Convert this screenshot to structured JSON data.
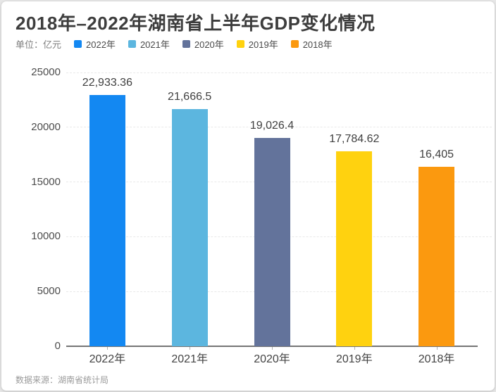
{
  "header": {
    "title": "2018年–2022年湖南省上半年GDP变化情况",
    "unit_label": "单位：亿元"
  },
  "legend": {
    "position": "top",
    "items": [
      {
        "label": "2022年",
        "color": "#1388F2"
      },
      {
        "label": "2021年",
        "color": "#5CB6DF"
      },
      {
        "label": "2020年",
        "color": "#63739B"
      },
      {
        "label": "2019年",
        "color": "#FFD20F"
      },
      {
        "label": "2018年",
        "color": "#FB990F"
      }
    ]
  },
  "chart_data": {
    "type": "bar",
    "title": "2018年–2022年湖南省上半年GDP变化情况",
    "categories": [
      "2022年",
      "2021年",
      "2020年",
      "2019年",
      "2018年"
    ],
    "values": [
      22933.36,
      21666.5,
      19026.4,
      17784.62,
      16405
    ],
    "value_labels": [
      "22,933.36",
      "21,666.5",
      "19,026.4",
      "17,784.62",
      "16,405"
    ],
    "colors": [
      "#1388F2",
      "#5CB6DF",
      "#63739B",
      "#FFD20F",
      "#FB990F"
    ],
    "xlabel": "",
    "ylabel": "亿元",
    "ylim": [
      0,
      25000
    ],
    "yticks": [
      0,
      5000,
      10000,
      15000,
      20000,
      25000
    ],
    "grid": "horizontal-dashed",
    "legend_position": "top"
  },
  "footer": {
    "source": "数据来源：湖南省统计局"
  }
}
